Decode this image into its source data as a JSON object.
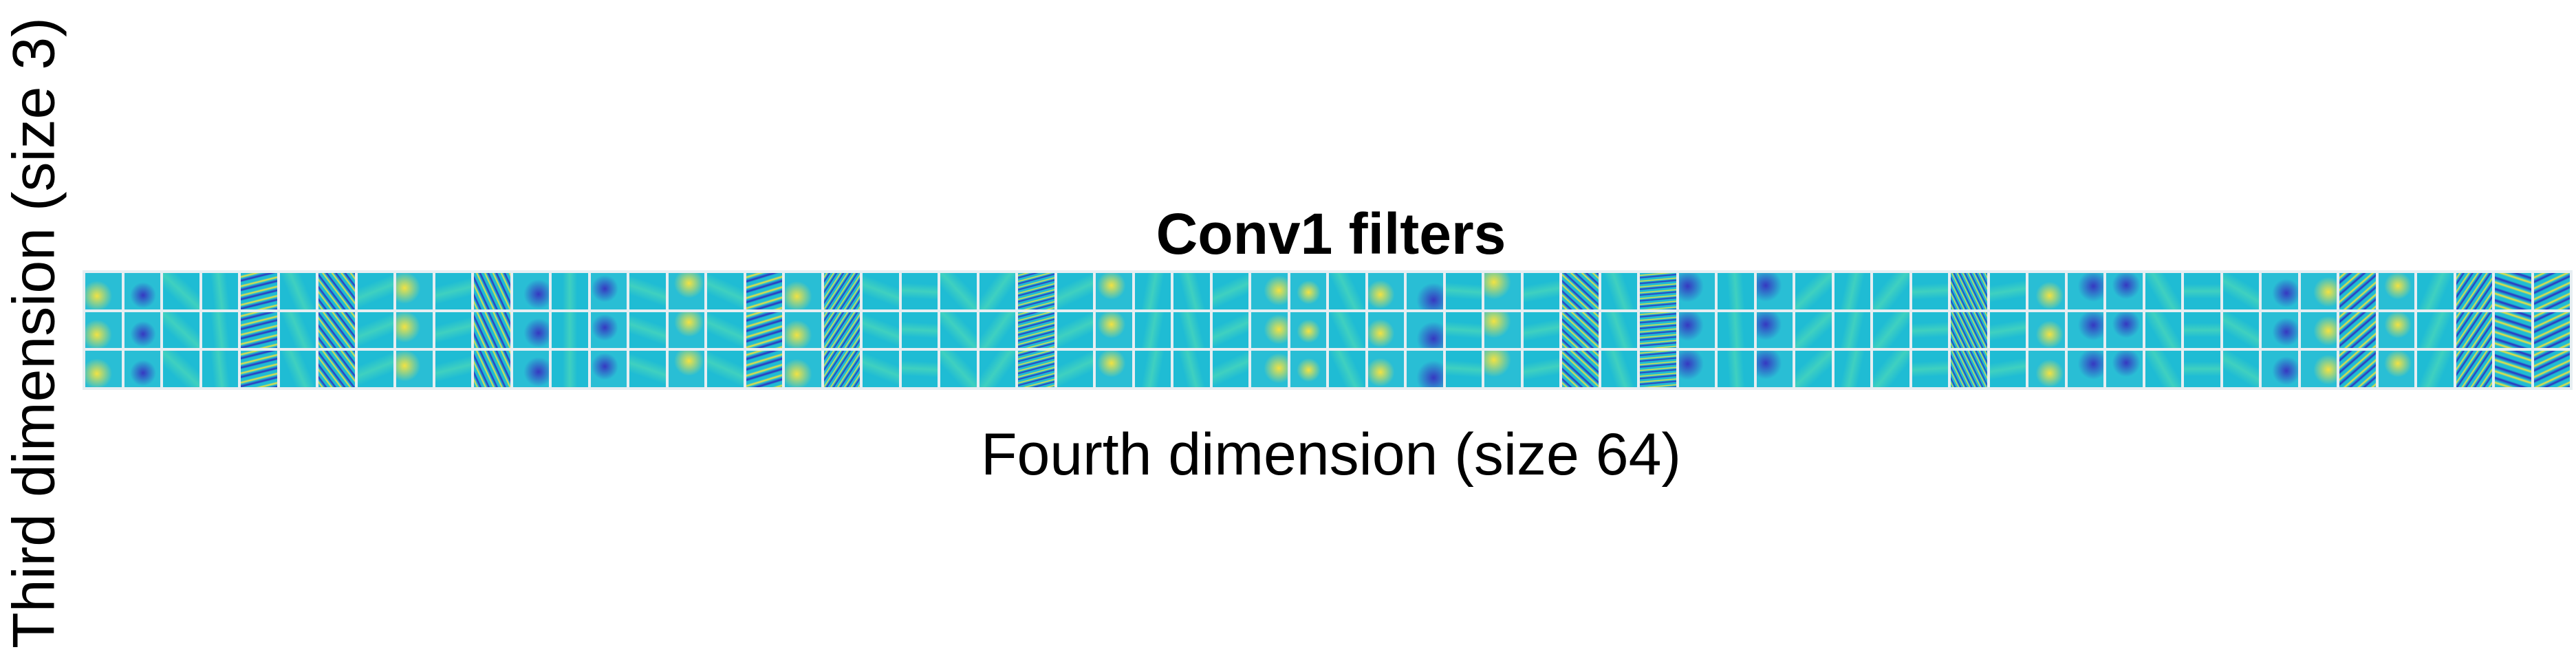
{
  "figure": {
    "title": "Conv1 filters",
    "xlabel": "Fourth dimension (size 64)",
    "ylabel": "Third dimension (size 3)",
    "grid": {
      "rows": 3,
      "cols": 64
    },
    "colormap": {
      "background": "#1fbcd4",
      "positive": "#f2e23a",
      "negative": "#2d2fbf"
    },
    "strong_stripe_columns": [
      4,
      6,
      10,
      17,
      19,
      24,
      38,
      40,
      48,
      58,
      61,
      62,
      63
    ]
  }
}
